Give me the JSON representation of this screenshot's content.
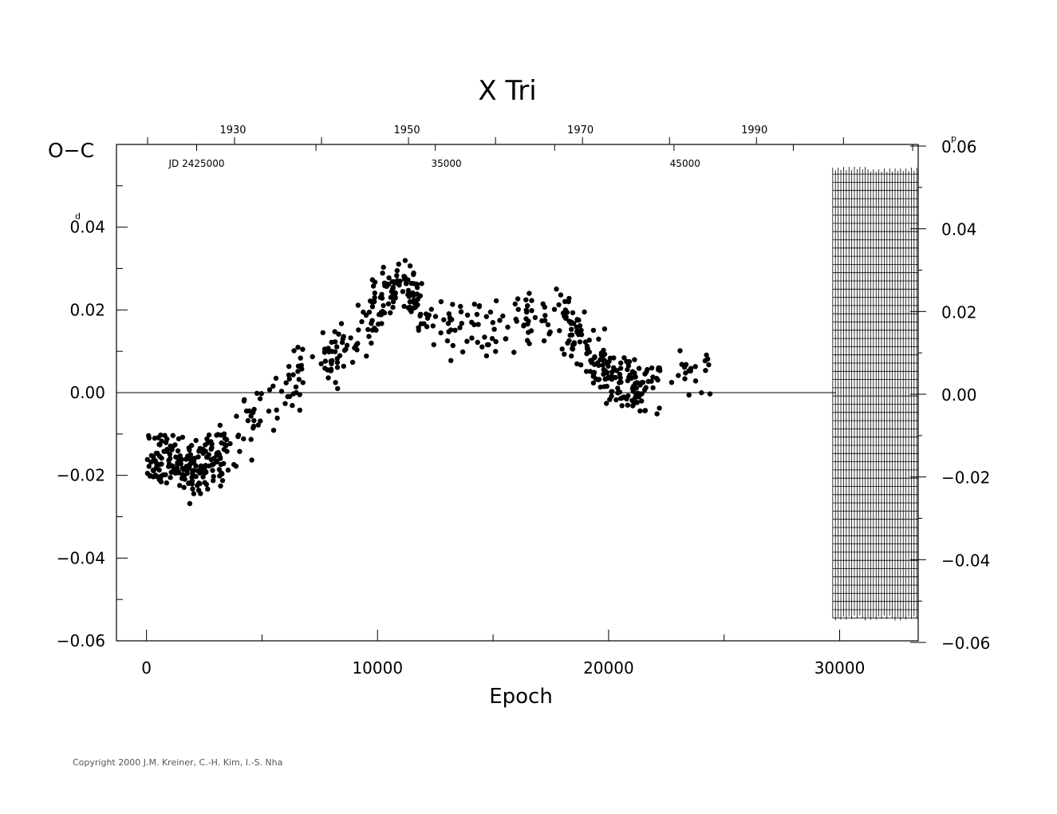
{
  "chart_data": {
    "type": "scatter",
    "title": "X  Tri",
    "xlabel": "Epoch",
    "ylabel": "O−C",
    "y_unit_left": "d",
    "y_unit_right": "p",
    "xlim": [
      -1300,
      33400
    ],
    "ylim": [
      -0.06,
      0.06
    ],
    "right_axis_ylim": [
      -0.06,
      0.06
    ],
    "x_ticks": [
      0,
      10000,
      20000,
      30000
    ],
    "x_tick_labels": [
      "0",
      "10000",
      "20000",
      "30000"
    ],
    "y_ticks_left": [
      -0.06,
      -0.04,
      -0.02,
      0.0,
      0.02,
      0.04
    ],
    "y_tick_labels_left": [
      "−0.06",
      "−0.04",
      "−0.02",
      "0.00",
      "0.02",
      "0.04"
    ],
    "y_tick_labels_right": [
      "−0.06",
      "−0.04",
      "−0.02",
      "0.00",
      "0.02",
      "0.04",
      "0.06"
    ],
    "top_axis_years": {
      "labels": [
        "1930",
        "1950",
        "1970",
        "1990"
      ],
      "epochs": [
        3810,
        11340,
        18850,
        26380
      ]
    },
    "top_axis_jd": {
      "labels": [
        "JD  2425000",
        "35000",
        "45000"
      ],
      "epochs": [
        2170,
        12980,
        23310
      ]
    },
    "zero_line": 0.0,
    "hatched_region": {
      "x_from": 29700,
      "x_to": 33400,
      "y_from": -0.0545,
      "y_to": 0.054
    },
    "control_points": [
      [
        0,
        -0.018
      ],
      [
        800,
        -0.016
      ],
      [
        1500,
        -0.018
      ],
      [
        2300,
        -0.018
      ],
      [
        3000,
        -0.016
      ],
      [
        3800,
        -0.012
      ],
      [
        4500,
        -0.007
      ],
      [
        5200,
        -0.004
      ],
      [
        5800,
        0.0
      ],
      [
        6300,
        0.002
      ],
      [
        7200,
        0.006
      ],
      [
        8000,
        0.009
      ],
      [
        9000,
        0.013
      ],
      [
        9800,
        0.019
      ],
      [
        10500,
        0.024
      ],
      [
        11000,
        0.026
      ],
      [
        11500,
        0.024
      ],
      [
        12200,
        0.019
      ],
      [
        13000,
        0.017
      ],
      [
        13800,
        0.016
      ],
      [
        14500,
        0.014
      ],
      [
        15200,
        0.015
      ],
      [
        16000,
        0.017
      ],
      [
        16800,
        0.019
      ],
      [
        17500,
        0.019
      ],
      [
        18200,
        0.016
      ],
      [
        18800,
        0.012
      ],
      [
        19300,
        0.008
      ],
      [
        20000,
        0.005
      ],
      [
        20700,
        0.002
      ],
      [
        21400,
        0.001
      ],
      [
        22100,
        0.002
      ],
      [
        22800,
        0.003
      ],
      [
        23500,
        0.004
      ],
      [
        24400,
        0.005
      ]
    ],
    "scatter_amplitude": 0.0035,
    "point_count": 720,
    "series": [
      {
        "values": []
      }
    ]
  },
  "footer": {
    "copyright": "Copyright 2000 J.M. Kreiner, C.-H. Kim, I.-S. Nha"
  }
}
